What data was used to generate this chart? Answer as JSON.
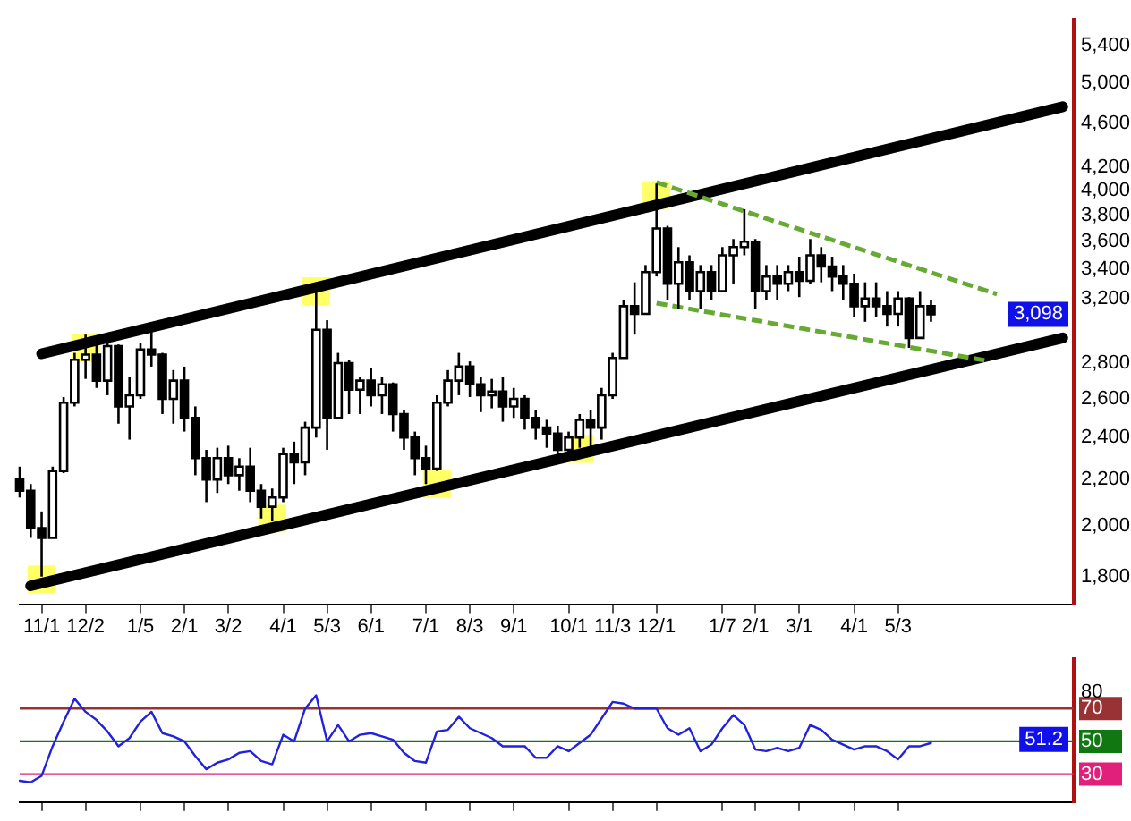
{
  "chart_data": [
    {
      "type": "candlestick",
      "color": "#000000",
      "log": true,
      "ylim": [
        1700,
        5700
      ],
      "yticks": [
        {
          "value": 1800,
          "label": "1,800"
        },
        {
          "value": 2000,
          "label": "2,000"
        },
        {
          "value": 2200,
          "label": "2,200"
        },
        {
          "value": 2400,
          "label": "2,400"
        },
        {
          "value": 2600,
          "label": "2,600"
        },
        {
          "value": 2800,
          "label": "2,800"
        },
        {
          "value": 3200,
          "label": "3,200"
        },
        {
          "value": 3400,
          "label": "3,400"
        },
        {
          "value": 3600,
          "label": "3,600"
        },
        {
          "value": 3800,
          "label": "3,800"
        },
        {
          "value": 4000,
          "label": "4,000"
        },
        {
          "value": 4200,
          "label": "4,200"
        },
        {
          "value": 4600,
          "label": "4,600"
        },
        {
          "value": 5000,
          "label": "5,000"
        },
        {
          "value": 5400,
          "label": "5,400"
        }
      ],
      "categories": [
        null,
        null,
        "11/1",
        null,
        null,
        null,
        "12/2",
        null,
        null,
        null,
        null,
        "1/5",
        null,
        null,
        null,
        "2/1",
        null,
        null,
        null,
        "3/2",
        null,
        null,
        null,
        null,
        "4/1",
        null,
        null,
        null,
        "5/3",
        null,
        null,
        null,
        "6/1",
        null,
        null,
        null,
        null,
        "7/1",
        null,
        null,
        null,
        "8/3",
        null,
        null,
        null,
        "9/1",
        null,
        null,
        null,
        null,
        "10/1",
        null,
        null,
        null,
        "11/3",
        null,
        null,
        null,
        "12/1",
        null,
        null,
        null,
        null,
        null,
        "1/7",
        null,
        null,
        "2/1",
        null,
        null,
        null,
        "3/1",
        null,
        null,
        null,
        null,
        "4/1",
        null,
        null,
        null,
        "5/3",
        null,
        null,
        null,
        null,
        null,
        null,
        null,
        null,
        null,
        null,
        null,
        null,
        null,
        null,
        null,
        null
      ],
      "ohlc": [
        [
          2200,
          2260,
          2120,
          2150
        ],
        [
          2150,
          2180,
          1950,
          1990
        ],
        [
          1990,
          2060,
          1800,
          1950
        ],
        [
          1950,
          2260,
          1950,
          2240
        ],
        [
          2240,
          2610,
          2230,
          2580
        ],
        [
          2580,
          2860,
          2560,
          2820
        ],
        [
          2820,
          2970,
          2710,
          2850
        ],
        [
          2850,
          2960,
          2660,
          2700
        ],
        [
          2700,
          2950,
          2620,
          2900
        ],
        [
          2900,
          2910,
          2470,
          2560
        ],
        [
          2560,
          2720,
          2390,
          2620
        ],
        [
          2620,
          2920,
          2600,
          2880
        ],
        [
          2880,
          2990,
          2780,
          2850
        ],
        [
          2850,
          2860,
          2520,
          2600
        ],
        [
          2600,
          2760,
          2470,
          2700
        ],
        [
          2700,
          2780,
          2430,
          2500
        ],
        [
          2500,
          2560,
          2220,
          2300
        ],
        [
          2300,
          2340,
          2100,
          2200
        ],
        [
          2200,
          2350,
          2140,
          2300
        ],
        [
          2300,
          2360,
          2180,
          2220
        ],
        [
          2220,
          2300,
          2150,
          2260
        ],
        [
          2260,
          2350,
          2100,
          2150
        ],
        [
          2150,
          2180,
          2030,
          2080
        ],
        [
          2080,
          2160,
          2020,
          2120
        ],
        [
          2120,
          2350,
          2100,
          2320
        ],
        [
          2320,
          2380,
          2180,
          2280
        ],
        [
          2280,
          2480,
          2220,
          2450
        ],
        [
          2450,
          3250,
          2400,
          3000
        ],
        [
          3000,
          3060,
          2340,
          2500
        ],
        [
          2500,
          2860,
          2500,
          2800
        ],
        [
          2800,
          2820,
          2520,
          2650
        ],
        [
          2650,
          2720,
          2520,
          2700
        ],
        [
          2700,
          2770,
          2560,
          2620
        ],
        [
          2620,
          2720,
          2520,
          2680
        ],
        [
          2680,
          2690,
          2430,
          2520
        ],
        [
          2520,
          2540,
          2340,
          2400
        ],
        [
          2400,
          2430,
          2220,
          2300
        ],
        [
          2300,
          2360,
          2180,
          2250
        ],
        [
          2250,
          2620,
          2240,
          2580
        ],
        [
          2580,
          2760,
          2560,
          2700
        ],
        [
          2700,
          2860,
          2620,
          2780
        ],
        [
          2780,
          2810,
          2610,
          2680
        ],
        [
          2680,
          2720,
          2530,
          2620
        ],
        [
          2620,
          2710,
          2550,
          2640
        ],
        [
          2640,
          2720,
          2480,
          2560
        ],
        [
          2560,
          2660,
          2500,
          2600
        ],
        [
          2600,
          2620,
          2440,
          2500
        ],
        [
          2500,
          2540,
          2390,
          2450
        ],
        [
          2450,
          2490,
          2350,
          2420
        ],
        [
          2420,
          2460,
          2300,
          2340
        ],
        [
          2340,
          2430,
          2310,
          2400
        ],
        [
          2400,
          2520,
          2350,
          2490
        ],
        [
          2490,
          2540,
          2350,
          2450
        ],
        [
          2450,
          2660,
          2390,
          2620
        ],
        [
          2620,
          2860,
          2600,
          2830
        ],
        [
          2830,
          3190,
          2830,
          3150
        ],
        [
          3150,
          3310,
          2970,
          3100
        ],
        [
          3100,
          3430,
          3100,
          3380
        ],
        [
          3380,
          4060,
          3350,
          3700
        ],
        [
          3700,
          3720,
          3190,
          3300
        ],
        [
          3300,
          3560,
          3130,
          3450
        ],
        [
          3450,
          3500,
          3190,
          3250
        ],
        [
          3250,
          3430,
          3130,
          3380
        ],
        [
          3380,
          3430,
          3190,
          3250
        ],
        [
          3250,
          3560,
          3250,
          3500
        ],
        [
          3500,
          3620,
          3300,
          3560
        ],
        [
          3560,
          3850,
          3500,
          3600
        ],
        [
          3600,
          3620,
          3130,
          3250
        ],
        [
          3250,
          3430,
          3190,
          3350
        ],
        [
          3350,
          3430,
          3190,
          3300
        ],
        [
          3300,
          3430,
          3250,
          3380
        ],
        [
          3380,
          3490,
          3210,
          3320
        ],
        [
          3320,
          3620,
          3300,
          3500
        ],
        [
          3500,
          3560,
          3310,
          3420
        ],
        [
          3420,
          3490,
          3250,
          3350
        ],
        [
          3350,
          3430,
          3190,
          3300
        ],
        [
          3300,
          3370,
          3080,
          3150
        ],
        [
          3150,
          3310,
          3050,
          3200
        ],
        [
          3200,
          3310,
          3080,
          3150
        ],
        [
          3150,
          3250,
          3020,
          3100
        ],
        [
          3100,
          3250,
          3020,
          3200
        ],
        [
          3200,
          3210,
          2890,
          2950
        ],
        [
          2950,
          3250,
          2950,
          3150
        ],
        [
          3150,
          3190,
          3050,
          3098
        ],
        null,
        null,
        null,
        null,
        null,
        null,
        null,
        null,
        null,
        null,
        null,
        null,
        null
      ],
      "series": [
        {
          "type": "scatter",
          "marker": "square",
          "color": "#ffff66",
          "values": [
            null,
            null,
            1790,
            null,
            null,
            null,
            2890,
            null,
            null,
            null,
            null,
            null,
            null,
            null,
            null,
            null,
            null,
            null,
            null,
            null,
            null,
            null,
            null,
            2030,
            null,
            null,
            null,
            3250,
            null,
            null,
            null,
            null,
            null,
            null,
            null,
            null,
            null,
            null,
            2180,
            null,
            null,
            null,
            null,
            null,
            null,
            null,
            null,
            null,
            null,
            null,
            null,
            2345,
            null,
            null,
            null,
            null,
            null,
            null,
            3966,
            null,
            null,
            null,
            null,
            null,
            null,
            null,
            null,
            null,
            null,
            null,
            null,
            null,
            null,
            null,
            null,
            null,
            null,
            null,
            null,
            null,
            null,
            null,
            null,
            null,
            null,
            null,
            null,
            null,
            null,
            null,
            null,
            null,
            null,
            null,
            null,
            null,
            null
          ]
        },
        {
          "type": "line",
          "color": "#000000",
          "line_style": "solid",
          "values": [
            null,
            null,
            2855,
            null,
            null,
            null,
            null,
            null,
            null,
            null,
            null,
            null,
            null,
            null,
            null,
            null,
            null,
            null,
            null,
            null,
            null,
            null,
            null,
            null,
            null,
            null,
            null,
            null,
            null,
            null,
            null,
            null,
            null,
            null,
            null,
            null,
            null,
            null,
            null,
            null,
            null,
            null,
            null,
            null,
            null,
            null,
            null,
            null,
            null,
            null,
            null,
            null,
            null,
            null,
            null,
            null,
            null,
            null,
            null,
            null,
            null,
            null,
            null,
            null,
            null,
            null,
            null,
            null,
            null,
            null,
            null,
            null,
            null,
            null,
            null,
            null,
            null,
            null,
            null,
            null,
            null,
            null,
            null,
            null,
            null,
            null,
            null,
            null,
            null,
            null,
            null,
            null,
            null,
            null,
            null,
            4760,
            null
          ]
        },
        {
          "type": "line",
          "color": "#000000",
          "line_style": "solid",
          "values": [
            null,
            1766,
            null,
            null,
            null,
            null,
            null,
            null,
            null,
            null,
            null,
            null,
            null,
            null,
            null,
            null,
            null,
            null,
            null,
            null,
            null,
            null,
            null,
            null,
            null,
            null,
            null,
            null,
            null,
            null,
            null,
            null,
            null,
            null,
            null,
            null,
            null,
            null,
            null,
            null,
            null,
            null,
            null,
            null,
            null,
            null,
            null,
            null,
            null,
            null,
            null,
            null,
            null,
            null,
            null,
            null,
            null,
            null,
            null,
            null,
            null,
            null,
            null,
            null,
            null,
            null,
            null,
            null,
            null,
            null,
            null,
            null,
            null,
            null,
            null,
            null,
            null,
            null,
            null,
            null,
            null,
            null,
            null,
            null,
            null,
            null,
            null,
            null,
            null,
            null,
            null,
            null,
            null,
            null,
            null,
            2950,
            null
          ]
        },
        {
          "type": "line",
          "color": "#66aa33",
          "line_style": "dashed",
          "values": [
            null,
            null,
            null,
            null,
            null,
            null,
            null,
            null,
            null,
            null,
            null,
            null,
            null,
            null,
            null,
            null,
            null,
            null,
            null,
            null,
            null,
            null,
            null,
            null,
            null,
            null,
            null,
            null,
            null,
            null,
            null,
            null,
            null,
            null,
            null,
            null,
            null,
            null,
            null,
            null,
            null,
            null,
            null,
            null,
            null,
            null,
            null,
            null,
            null,
            null,
            null,
            null,
            null,
            null,
            null,
            null,
            null,
            null,
            4070,
            null,
            null,
            null,
            null,
            null,
            null,
            null,
            null,
            null,
            null,
            null,
            null,
            null,
            null,
            null,
            null,
            null,
            null,
            null,
            null,
            null,
            null,
            null,
            null,
            null,
            null,
            null,
            null,
            null,
            null,
            3230,
            null,
            null,
            null,
            null,
            null,
            null,
            null
          ]
        },
        {
          "type": "line",
          "color": "#66aa33",
          "line_style": "dashed",
          "values": [
            null,
            null,
            null,
            null,
            null,
            null,
            null,
            null,
            null,
            null,
            null,
            null,
            null,
            null,
            null,
            null,
            null,
            null,
            null,
            null,
            null,
            null,
            null,
            null,
            null,
            null,
            null,
            null,
            null,
            null,
            null,
            null,
            null,
            null,
            null,
            null,
            null,
            null,
            null,
            null,
            null,
            null,
            null,
            null,
            null,
            null,
            null,
            null,
            null,
            null,
            null,
            null,
            null,
            null,
            null,
            null,
            null,
            null,
            3170,
            null,
            null,
            null,
            null,
            null,
            null,
            null,
            null,
            null,
            null,
            null,
            null,
            null,
            null,
            null,
            null,
            null,
            null,
            null,
            null,
            null,
            null,
            null,
            null,
            null,
            null,
            null,
            null,
            null,
            2815,
            null,
            null,
            null,
            null,
            null,
            null,
            null,
            null
          ]
        }
      ],
      "annotations": [
        {
          "text": "3,098",
          "y": 3098
        }
      ]
    },
    {
      "type": "line",
      "color": "#2222dd",
      "tick_labels": "y",
      "ylim": [
        13,
        100
      ],
      "yticks": [
        30,
        50,
        70,
        80
      ],
      "categories": [
        null,
        null,
        null,
        null,
        null,
        null,
        null,
        null,
        null,
        null,
        null,
        null,
        null,
        null,
        null,
        null,
        null,
        null,
        null,
        null,
        null,
        null,
        null,
        null,
        null,
        null,
        null,
        null,
        null,
        null,
        null,
        null,
        null,
        null,
        null,
        null,
        null,
        null,
        null,
        null,
        null,
        null,
        null,
        null,
        null,
        null,
        null,
        null,
        null,
        null,
        null,
        null,
        null,
        null,
        null,
        null,
        null,
        null,
        null,
        null,
        null,
        null,
        null,
        null,
        null,
        null,
        null,
        null,
        null,
        null,
        null,
        null,
        null,
        null,
        null,
        null,
        null,
        null,
        null,
        null,
        null,
        null,
        null,
        null,
        null,
        null,
        null,
        null,
        null,
        null,
        null,
        null,
        null,
        null,
        null,
        null,
        null
      ],
      "values": [
        26,
        25,
        29,
        47,
        62,
        76,
        68,
        63,
        56,
        47,
        52,
        62,
        68,
        55,
        53,
        50,
        41,
        33,
        37,
        39,
        43,
        44,
        38,
        36,
        54,
        50,
        70,
        78,
        50,
        60,
        50,
        54,
        55,
        53,
        51,
        43,
        38,
        37,
        56,
        57,
        65,
        58,
        55,
        52,
        47,
        47,
        47,
        40,
        40,
        47,
        44,
        49,
        54,
        64,
        74,
        73,
        70,
        70,
        70,
        58,
        54,
        58,
        44,
        48,
        58,
        66,
        60,
        45,
        44,
        46,
        44,
        46,
        60,
        57,
        51,
        48,
        45,
        47,
        47,
        44,
        39,
        47,
        47,
        49,
        null,
        null,
        null,
        null,
        null,
        null,
        null,
        null,
        null,
        null,
        null,
        null,
        null
      ],
      "ref_lines": [
        {
          "axis": "y",
          "value": 70,
          "color": "#993333"
        },
        {
          "axis": "y",
          "value": 50,
          "color": "#117711"
        },
        {
          "axis": "y",
          "value": 30,
          "color": "#e0207a"
        }
      ],
      "annotations": [
        {
          "text": "51.2",
          "y": 51.2
        }
      ]
    }
  ]
}
